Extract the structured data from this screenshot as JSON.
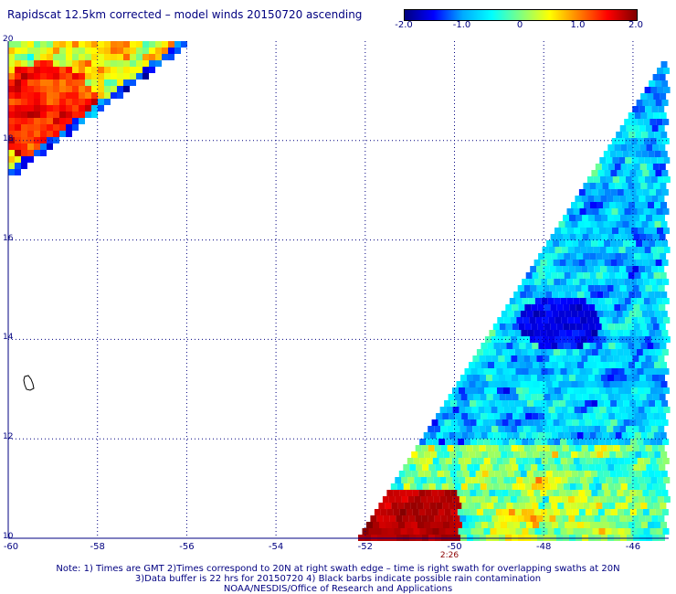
{
  "title": "Rapidscat 12.5km corrected – model winds 20150720 ascending",
  "colorbar": {
    "ticks": [
      {
        "label": "-2.0",
        "value": -2.0
      },
      {
        "label": "-1.0",
        "value": -1.0
      },
      {
        "label": "0",
        "value": 0.0
      },
      {
        "label": "1.0",
        "value": 1.0
      },
      {
        "label": "2.0",
        "value": 2.0
      }
    ],
    "min": -2.0,
    "max": 2.0,
    "colors": [
      "#00007f",
      "#0000ff",
      "#00aaff",
      "#00ffff",
      "#80ff80",
      "#ffff00",
      "#ff8000",
      "#ff0000",
      "#7f0000"
    ]
  },
  "map": {
    "lon_range": [
      -60,
      -45.2
    ],
    "lat_range": [
      10,
      20
    ],
    "lon_ticks": [
      "-60",
      "-58",
      "-56",
      "-54",
      "-52",
      "-50",
      "-48",
      "-46"
    ],
    "lat_ticks": [
      "20",
      "18",
      "16",
      "14",
      "12",
      "10"
    ],
    "grid_color": "#000080",
    "data_color": "#000000"
  },
  "time_label": "2:26",
  "notes": [
    "Note: 1) Times are GMT 2)Times correspond to 20N at right swath edge – time is right swath for overlapping swaths at 20N",
    "3)Data buffer is 22 hrs for 20150720 4) Black barbs indicate possible rain contamination",
    "NOAA/NESDIS/Office of Research and Applications"
  ]
}
